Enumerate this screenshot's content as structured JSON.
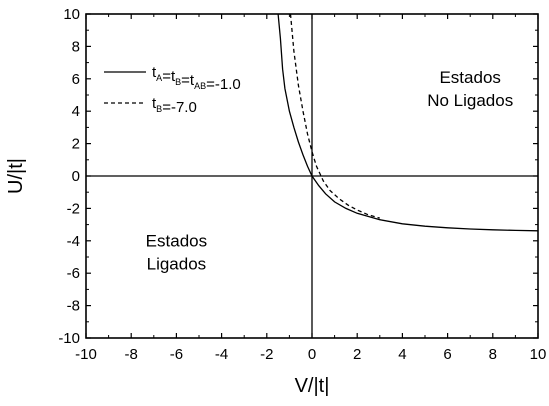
{
  "chart_data": {
    "type": "line",
    "xlabel": "V/|t|",
    "ylabel": "U/|t|",
    "xlim": [
      -10,
      10
    ],
    "ylim": [
      -10,
      10
    ],
    "x_ticks": [
      -10,
      -8,
      -6,
      -4,
      -2,
      0,
      2,
      4,
      6,
      8,
      10
    ],
    "y_ticks": [
      -10,
      -8,
      -6,
      -4,
      -2,
      0,
      2,
      4,
      6,
      8,
      10
    ],
    "x_tick_labels": [
      "-10",
      "-8",
      "-6",
      "-4",
      "-2",
      "0",
      "2",
      "4",
      "6",
      "8",
      "10"
    ],
    "y_tick_labels": [
      "-10",
      "-8",
      "-6",
      "-4",
      "-2",
      "0",
      "2",
      "4",
      "6",
      "8",
      "10"
    ],
    "grid": false,
    "legend_position": "upper-left",
    "legend": [
      {
        "style": "solid",
        "parts": [
          {
            "text": "t",
            "sub": "A"
          },
          {
            "text": "=t",
            "sub": "B"
          },
          {
            "text": "=t",
            "sub": "AB"
          },
          {
            "text": "=-1.0"
          }
        ]
      },
      {
        "style": "dashed",
        "parts": [
          {
            "text": "t",
            "sub": "B"
          },
          {
            "text": "=-7.0"
          }
        ]
      }
    ],
    "annotations": [
      {
        "lines": [
          "Estados",
          "No Ligados"
        ],
        "x": 7.0,
        "y": 5.5
      },
      {
        "lines": [
          "Estados",
          "Ligados"
        ],
        "x": -6.0,
        "y": -4.6
      }
    ],
    "series": [
      {
        "style": "solid",
        "x": [
          -1.5,
          -1.4,
          -1.3,
          -1.2,
          -1.0,
          -0.8,
          -0.6,
          -0.4,
          -0.2,
          0.0,
          0.3,
          0.6,
          1.0,
          1.5,
          2.0,
          3.0,
          4.0,
          5.0,
          6.0,
          7.0,
          8.0,
          9.0,
          10.0
        ],
        "y": [
          10.0,
          8.5,
          6.6,
          5.4,
          4.0,
          3.0,
          2.1,
          1.3,
          0.6,
          0.0,
          -0.6,
          -1.1,
          -1.6,
          -2.0,
          -2.3,
          -2.7,
          -2.95,
          -3.1,
          -3.2,
          -3.27,
          -3.32,
          -3.36,
          -3.38
        ]
      },
      {
        "style": "dashed",
        "x": [
          -0.95,
          -0.8,
          -0.6,
          -0.4,
          -0.2,
          0.0,
          0.2,
          0.5,
          0.8,
          1.2,
          1.6,
          2.0,
          2.5,
          3.0
        ],
        "y": [
          10.0,
          7.7,
          5.6,
          4.0,
          2.6,
          1.5,
          0.6,
          -0.3,
          -0.9,
          -1.4,
          -1.8,
          -2.1,
          -2.4,
          -2.6
        ]
      }
    ]
  }
}
